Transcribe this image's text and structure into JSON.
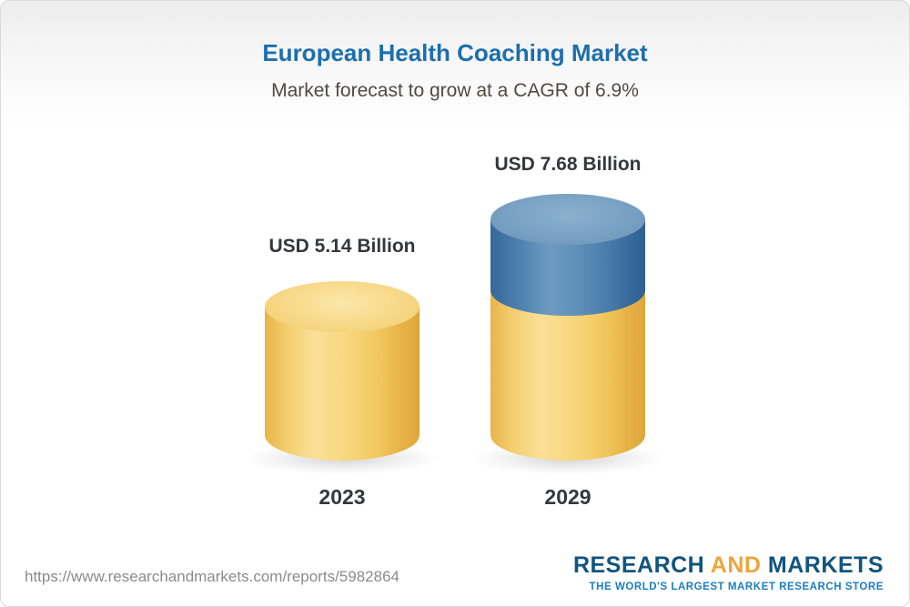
{
  "header": {
    "title": "European Health Coaching Market",
    "subtitle": "Market forecast to grow at a CAGR of 6.9%"
  },
  "chart_data": {
    "type": "bar",
    "categories": [
      "2023",
      "2029"
    ],
    "values": [
      5.14,
      7.68
    ],
    "value_labels": [
      "USD 5.14 Billion",
      "USD 7.68 Billion"
    ],
    "title": "European Health Coaching Market",
    "subtitle": "Market forecast to grow at a CAGR of 6.9%",
    "unit": "USD Billion",
    "cagr_percent": 6.9,
    "legend_position": "none",
    "grid": false,
    "bar_style": "3d-cylinder",
    "colors": {
      "base_segment": "#f3cd6d",
      "growth_segment": "#4a7dab",
      "title": "#1c6fae",
      "label_text": "#33383d"
    }
  },
  "footer": {
    "url": "https://www.researchandmarkets.com/reports/5982864",
    "logo": {
      "research": "RESEARCH",
      "and": "AND",
      "markets": "MARKETS",
      "tagline": "THE WORLD'S LARGEST MARKET RESEARCH STORE"
    }
  }
}
